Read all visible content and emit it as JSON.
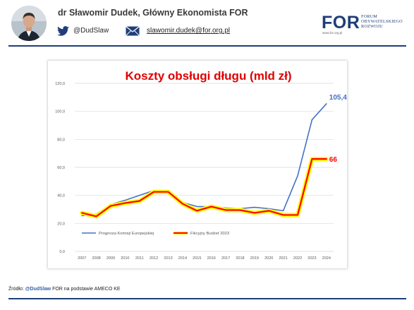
{
  "header": {
    "author": "dr Sławomir Dudek, Główny Ekonomista FOR",
    "twitter_handle": "@DudSlaw",
    "email": "slawomir.dudek@for.org.pl",
    "logo": {
      "word": "FOR",
      "line1": "FORUM",
      "line2": "OBYWATELSKIEGO",
      "line3": "ROZWOJU",
      "url": "www.for.org.pl"
    },
    "brand_color": "#1f3e78"
  },
  "footer": {
    "prefix": "Źródło: ",
    "handle": "@DudSlaw",
    "suffix": " FOR na podstawie AMECO KE"
  },
  "chart_data": {
    "type": "line",
    "title": "Koszty obsługi długu (mld zł)",
    "xlabel": "",
    "ylabel": "",
    "ylim": [
      0,
      120
    ],
    "yticks": [
      "0,0",
      "20,0",
      "40,0",
      "60,0",
      "80,0",
      "100,0",
      "120,0"
    ],
    "x": [
      "2007",
      "2008",
      "2009",
      "2010",
      "2011",
      "2012",
      "2013",
      "2014",
      "2015",
      "2016",
      "2017",
      "2018",
      "2019",
      "2020",
      "2021",
      "2022",
      "2023",
      "2024"
    ],
    "grid": true,
    "legend": "inside-bottom",
    "series": [
      {
        "name": "Prognoza Komisji Europejskiej",
        "color": "#4472c4",
        "values": [
          25.5,
          26.5,
          33.5,
          36.5,
          40,
          43.5,
          42,
          35,
          32,
          32,
          31,
          30.5,
          31.5,
          30.5,
          29,
          54,
          94,
          105.4
        ],
        "end_label": "105,4"
      },
      {
        "name": "Fikcyjny Budżet 2023",
        "color": "#ff0000",
        "highlight": "#ffff00",
        "values": [
          27.5,
          25,
          32.5,
          34.5,
          36,
          42.5,
          42.5,
          34,
          29,
          32,
          29.5,
          29.5,
          27.5,
          29,
          26,
          26,
          66,
          66
        ],
        "end_label": "66"
      }
    ]
  }
}
